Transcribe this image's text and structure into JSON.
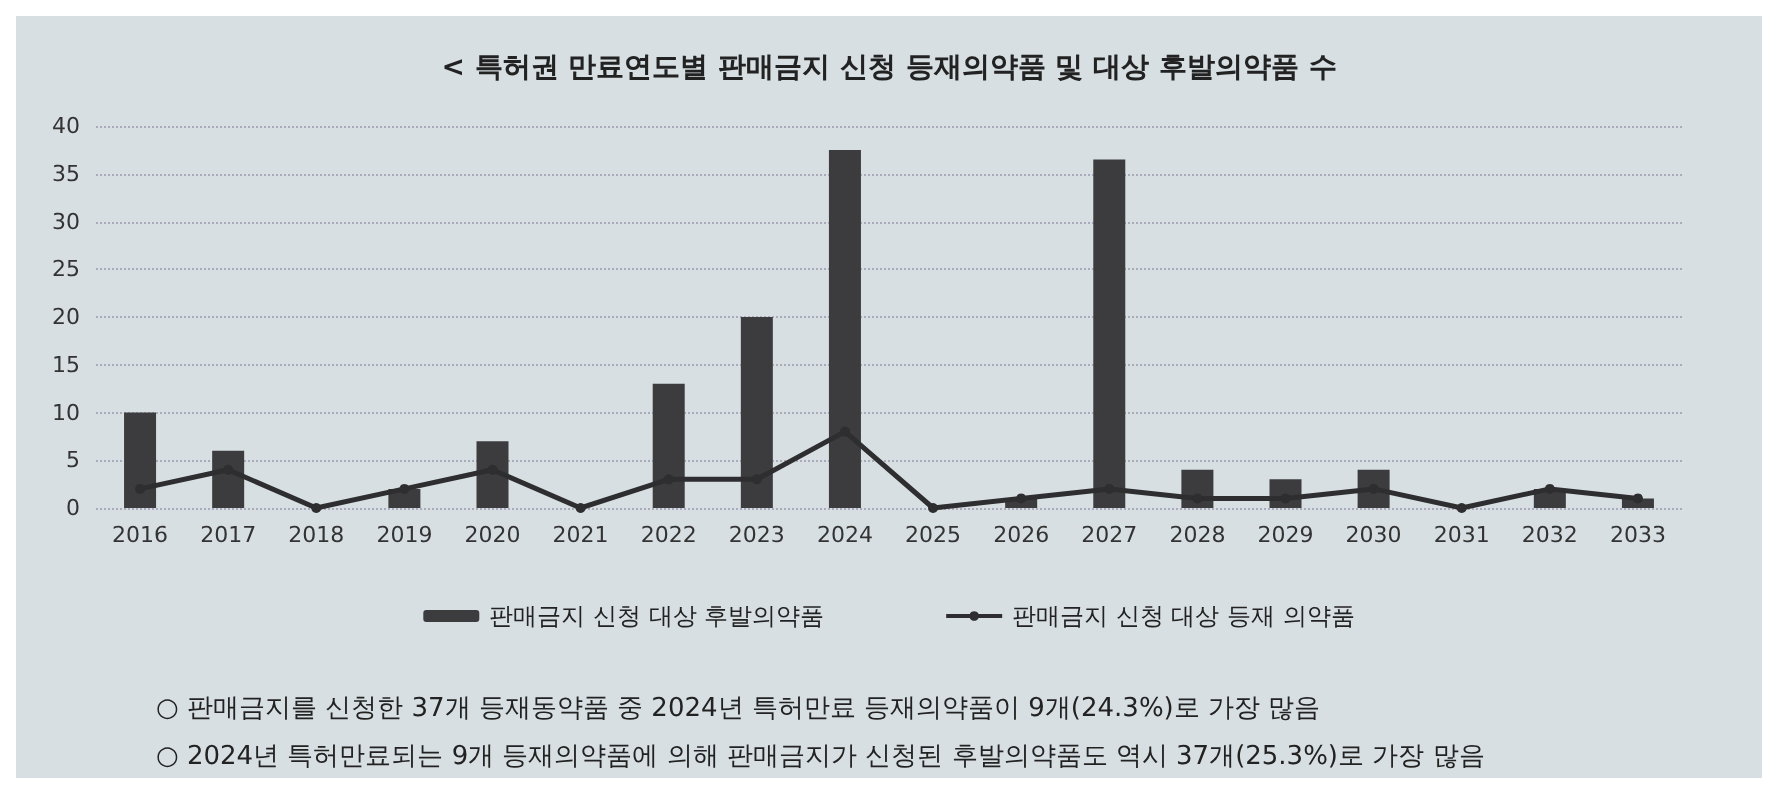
{
  "chart_data": {
    "type": "bar",
    "title": "< 특허권 만료연도별 판매금지 신청 등재의약품 및 대상 후발의약품 수",
    "categories": [
      "2016",
      "2017",
      "2018",
      "2019",
      "2020",
      "2021",
      "2022",
      "2023",
      "2024",
      "2025",
      "2026",
      "2027",
      "2028",
      "2029",
      "2030",
      "2031",
      "2032",
      "2033"
    ],
    "series": [
      {
        "name": "판매금지 신청 대상 후발의약품",
        "color": "#3c3c3e",
        "values": [
          10,
          6,
          0,
          2,
          7,
          0,
          13,
          20,
          37.5,
          0,
          1,
          36.5,
          4,
          3,
          4,
          0,
          2,
          1
        ]
      },
      {
        "name": "판매금지 신청 대상 등재 의약품",
        "type": "line",
        "color": "#2e2e30",
        "values": [
          2,
          4,
          0,
          2,
          4,
          0,
          3,
          3,
          8,
          0,
          1,
          2,
          1,
          1,
          2,
          0,
          2,
          1
        ]
      }
    ],
    "ylim": [
      0,
      40
    ],
    "yticks": [
      0,
      5,
      10,
      15,
      20,
      25,
      30,
      35,
      40
    ],
    "grid": "y",
    "legend": "bottom",
    "marker": "circle",
    "line_style": "solid",
    "annotations": [
      "○ 판매금지를 신청한 37개 등재동약품 중 2024년 특허만료 등재의약품이 9개(24.3%)로 가장 많음",
      "○ 2024년 특허만료되는 9개 등재의약품에 의해 판매금지가 신청된 후발의약품도 역시 37개(25.3%)로 가장 많음"
    ]
  }
}
